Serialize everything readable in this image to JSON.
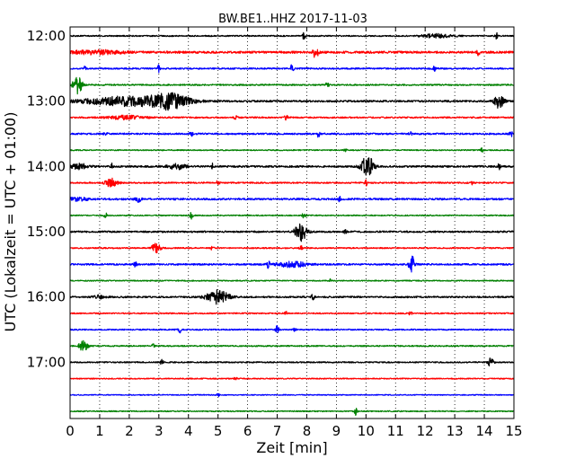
{
  "chart_data": {
    "type": "line",
    "title": "BW.BE1..HHZ 2017-11-03",
    "xlabel": "Zeit  [min]",
    "ylabel": "UTC (Lokalzeit = UTC + 01:00)",
    "xlim": [
      0,
      15
    ],
    "x_ticks": [
      "0",
      "1",
      "2",
      "3",
      "4",
      "5",
      "6",
      "7",
      "8",
      "9",
      "10",
      "11",
      "12",
      "13",
      "14",
      "15"
    ],
    "y_ticks": [
      {
        "label": "12:00",
        "trace": 0
      },
      {
        "label": "13:00",
        "trace": 4
      },
      {
        "label": "14:00",
        "trace": 8
      },
      {
        "label": "15:00",
        "trace": 12
      },
      {
        "label": "16:00",
        "trace": 16
      },
      {
        "label": "17:00",
        "trace": 20
      }
    ],
    "grid": true,
    "trace_minutes": 15,
    "color_cycle": [
      "#000000",
      "#ff0000",
      "#0000ff",
      "#008000"
    ],
    "series": [
      {
        "start": "12:00",
        "color": "#000000",
        "noise": 0.7,
        "events": [
          {
            "t": 7.9,
            "amp": 4,
            "dur": 0.05
          },
          {
            "t": 12.4,
            "amp": 2,
            "dur": 0.5
          },
          {
            "t": 14.4,
            "amp": 4,
            "dur": 0.05
          }
        ]
      },
      {
        "start": "12:15",
        "color": "#ff0000",
        "noise": 1.2,
        "events": [
          {
            "t": 0.8,
            "amp": 2,
            "dur": 1.0
          },
          {
            "t": 8.3,
            "amp": 7,
            "dur": 0.08
          },
          {
            "t": 13.8,
            "amp": 3,
            "dur": 0.05
          }
        ]
      },
      {
        "start": "12:30",
        "color": "#0000ff",
        "noise": 0.8,
        "events": [
          {
            "t": 0.5,
            "amp": 3,
            "dur": 0.03
          },
          {
            "t": 3.0,
            "amp": 4,
            "dur": 0.05
          },
          {
            "t": 7.5,
            "amp": 5,
            "dur": 0.05
          },
          {
            "t": 12.3,
            "amp": 3,
            "dur": 0.05
          }
        ]
      },
      {
        "start": "12:45",
        "color": "#008000",
        "noise": 0.8,
        "events": [
          {
            "t": 0.25,
            "amp": 10,
            "dur": 0.15
          },
          {
            "t": 8.7,
            "amp": 4,
            "dur": 0.05
          }
        ]
      },
      {
        "start": "13:00",
        "color": "#000000",
        "noise": 1.0,
        "events": [
          {
            "t": 2.0,
            "amp": 5,
            "dur": 1.5
          },
          {
            "t": 3.4,
            "amp": 7,
            "dur": 0.6
          },
          {
            "t": 14.5,
            "amp": 9,
            "dur": 0.15
          }
        ]
      },
      {
        "start": "13:15",
        "color": "#ff0000",
        "noise": 0.8,
        "events": [
          {
            "t": 1.9,
            "amp": 2,
            "dur": 0.6
          },
          {
            "t": 5.6,
            "amp": 3,
            "dur": 0.05
          },
          {
            "t": 7.3,
            "amp": 3,
            "dur": 0.05
          }
        ]
      },
      {
        "start": "13:30",
        "color": "#0000ff",
        "noise": 0.9,
        "events": [
          {
            "t": 1.2,
            "amp": 3,
            "dur": 0.05
          },
          {
            "t": 4.1,
            "amp": 3,
            "dur": 0.05
          },
          {
            "t": 8.4,
            "amp": 4,
            "dur": 0.05
          },
          {
            "t": 11.5,
            "amp": 2,
            "dur": 0.05
          },
          {
            "t": 14.9,
            "amp": 3,
            "dur": 0.05
          }
        ]
      },
      {
        "start": "13:45",
        "color": "#008000",
        "noise": 0.6,
        "events": [
          {
            "t": 9.3,
            "amp": 2,
            "dur": 0.05
          },
          {
            "t": 13.9,
            "amp": 3,
            "dur": 0.05
          }
        ]
      },
      {
        "start": "14:00",
        "color": "#000000",
        "noise": 1.0,
        "events": [
          {
            "t": 0.3,
            "amp": 3,
            "dur": 0.3
          },
          {
            "t": 1.4,
            "amp": 3,
            "dur": 0.05
          },
          {
            "t": 3.6,
            "amp": 3,
            "dur": 0.3
          },
          {
            "t": 4.8,
            "amp": 3,
            "dur": 0.05
          },
          {
            "t": 10.05,
            "amp": 12,
            "dur": 0.2
          },
          {
            "t": 14.5,
            "amp": 3,
            "dur": 0.05
          }
        ]
      },
      {
        "start": "14:15",
        "color": "#ff0000",
        "noise": 0.8,
        "events": [
          {
            "t": 1.4,
            "amp": 5,
            "dur": 0.2
          },
          {
            "t": 5.0,
            "amp": 3,
            "dur": 0.05
          },
          {
            "t": 10.0,
            "amp": 3,
            "dur": 0.05
          },
          {
            "t": 13.6,
            "amp": 2,
            "dur": 0.05
          }
        ]
      },
      {
        "start": "14:30",
        "color": "#0000ff",
        "noise": 1.0,
        "events": [
          {
            "t": 0.2,
            "amp": 2,
            "dur": 0.4
          },
          {
            "t": 2.3,
            "amp": 3,
            "dur": 0.1
          },
          {
            "t": 9.1,
            "amp": 3,
            "dur": 0.05
          }
        ]
      },
      {
        "start": "14:45",
        "color": "#008000",
        "noise": 0.6,
        "events": [
          {
            "t": 1.2,
            "amp": 3,
            "dur": 0.05
          },
          {
            "t": 4.1,
            "amp": 4,
            "dur": 0.05
          },
          {
            "t": 7.9,
            "amp": 4,
            "dur": 0.05
          }
        ]
      },
      {
        "start": "15:00",
        "color": "#000000",
        "noise": 0.9,
        "events": [
          {
            "t": 7.8,
            "amp": 10,
            "dur": 0.2
          },
          {
            "t": 9.3,
            "amp": 2,
            "dur": 0.05
          }
        ]
      },
      {
        "start": "15:15",
        "color": "#ff0000",
        "noise": 0.7,
        "events": [
          {
            "t": 2.9,
            "amp": 5,
            "dur": 0.15
          },
          {
            "t": 4.8,
            "amp": 2,
            "dur": 0.05
          },
          {
            "t": 7.8,
            "amp": 3,
            "dur": 0.05
          }
        ]
      },
      {
        "start": "15:30",
        "color": "#0000ff",
        "noise": 0.9,
        "events": [
          {
            "t": 2.2,
            "amp": 3,
            "dur": 0.05
          },
          {
            "t": 6.7,
            "amp": 4,
            "dur": 0.05
          },
          {
            "t": 7.5,
            "amp": 3,
            "dur": 0.5
          },
          {
            "t": 11.55,
            "amp": 9,
            "dur": 0.1
          }
        ]
      },
      {
        "start": "15:45",
        "color": "#008000",
        "noise": 0.6,
        "events": [
          {
            "t": 8.8,
            "amp": 2,
            "dur": 0.05
          }
        ]
      },
      {
        "start": "16:00",
        "color": "#000000",
        "noise": 0.9,
        "events": [
          {
            "t": 1.0,
            "amp": 2,
            "dur": 0.2
          },
          {
            "t": 5.0,
            "amp": 8,
            "dur": 0.35
          },
          {
            "t": 8.2,
            "amp": 3,
            "dur": 0.05
          }
        ]
      },
      {
        "start": "16:15",
        "color": "#ff0000",
        "noise": 0.7,
        "events": [
          {
            "t": 7.3,
            "amp": 2,
            "dur": 0.05
          },
          {
            "t": 11.5,
            "amp": 2,
            "dur": 0.05
          }
        ]
      },
      {
        "start": "16:30",
        "color": "#0000ff",
        "noise": 0.7,
        "events": [
          {
            "t": 3.7,
            "amp": 4,
            "dur": 0.05
          },
          {
            "t": 7.0,
            "amp": 5,
            "dur": 0.05
          },
          {
            "t": 7.6,
            "amp": 2,
            "dur": 0.05
          }
        ]
      },
      {
        "start": "16:45",
        "color": "#008000",
        "noise": 0.7,
        "events": [
          {
            "t": 0.45,
            "amp": 6,
            "dur": 0.15
          },
          {
            "t": 2.8,
            "amp": 2,
            "dur": 0.05
          }
        ]
      },
      {
        "start": "17:00",
        "color": "#000000",
        "noise": 0.7,
        "events": [
          {
            "t": 3.1,
            "amp": 3,
            "dur": 0.05
          },
          {
            "t": 14.2,
            "amp": 5,
            "dur": 0.1
          }
        ]
      },
      {
        "start": "17:15",
        "color": "#ff0000",
        "noise": 0.6,
        "events": [
          {
            "t": 5.6,
            "amp": 2,
            "dur": 0.05
          }
        ]
      },
      {
        "start": "17:30",
        "color": "#0000ff",
        "noise": 0.5,
        "events": [
          {
            "t": 5.0,
            "amp": 2,
            "dur": 0.05
          }
        ]
      },
      {
        "start": "17:45",
        "color": "#008000",
        "noise": 0.6,
        "events": [
          {
            "t": 9.65,
            "amp": 4,
            "dur": 0.05
          }
        ]
      }
    ]
  }
}
